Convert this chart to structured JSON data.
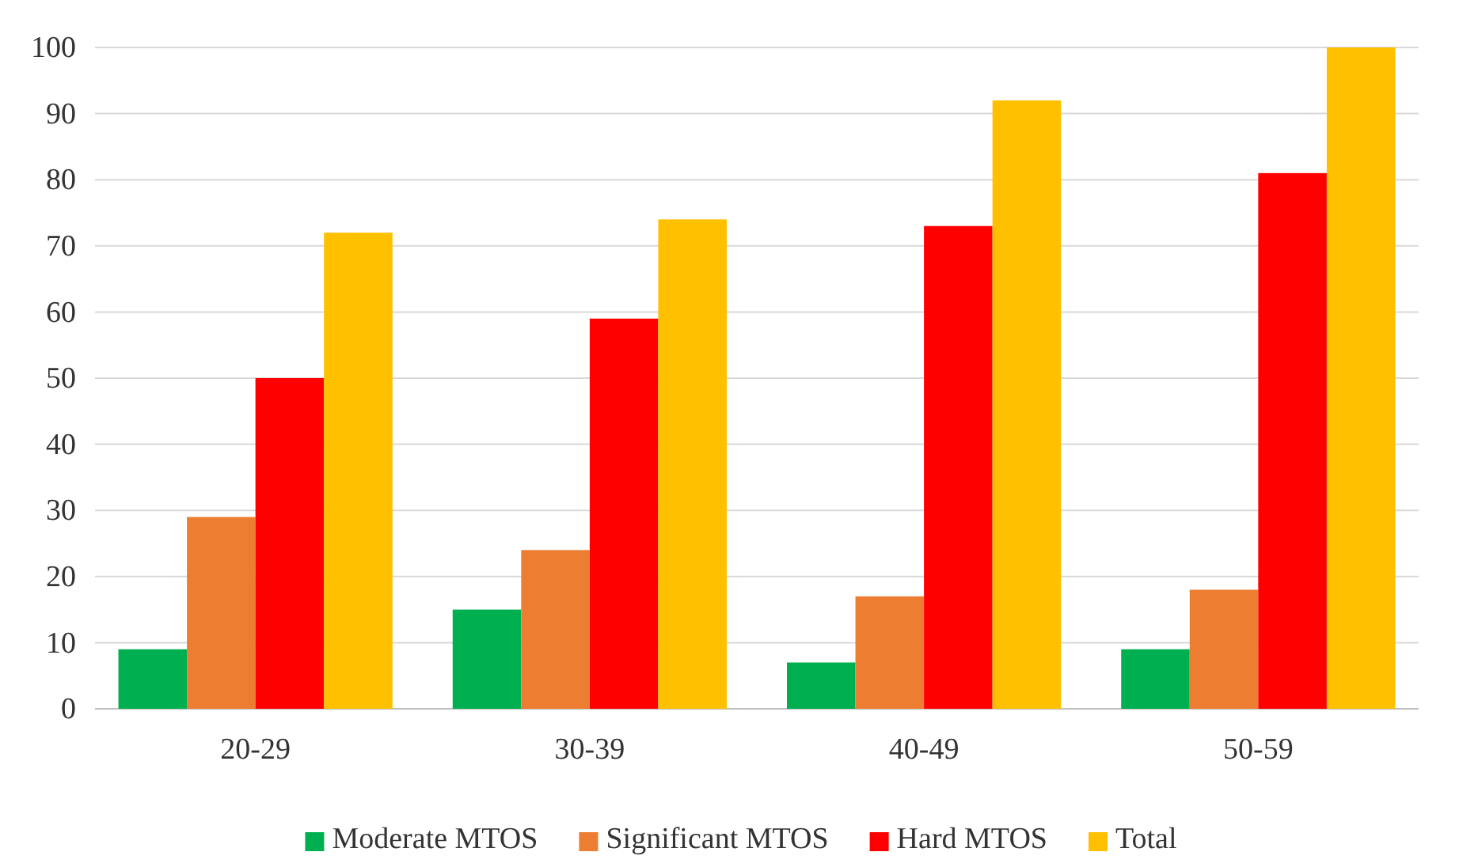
{
  "chart_data": {
    "type": "bar",
    "categories": [
      "20-29",
      "30-39",
      "40-49",
      "50-59"
    ],
    "series": [
      {
        "name": "Moderate MTOS",
        "color": "#00b050",
        "values": [
          9,
          15,
          7,
          9
        ]
      },
      {
        "name": "Significant MTOS",
        "color": "#ed7d31",
        "values": [
          29,
          24,
          17,
          18
        ]
      },
      {
        "name": "Hard MTOS",
        "color": "#ff0000",
        "values": [
          50,
          59,
          73,
          81
        ]
      },
      {
        "name": "Total",
        "color": "#ffc000",
        "values": [
          72,
          74,
          92,
          100
        ]
      }
    ],
    "ylim": [
      0,
      100
    ],
    "yticks": [
      0,
      10,
      20,
      30,
      40,
      50,
      60,
      70,
      80,
      90,
      100
    ],
    "grid": "y",
    "legend": "bottom"
  }
}
